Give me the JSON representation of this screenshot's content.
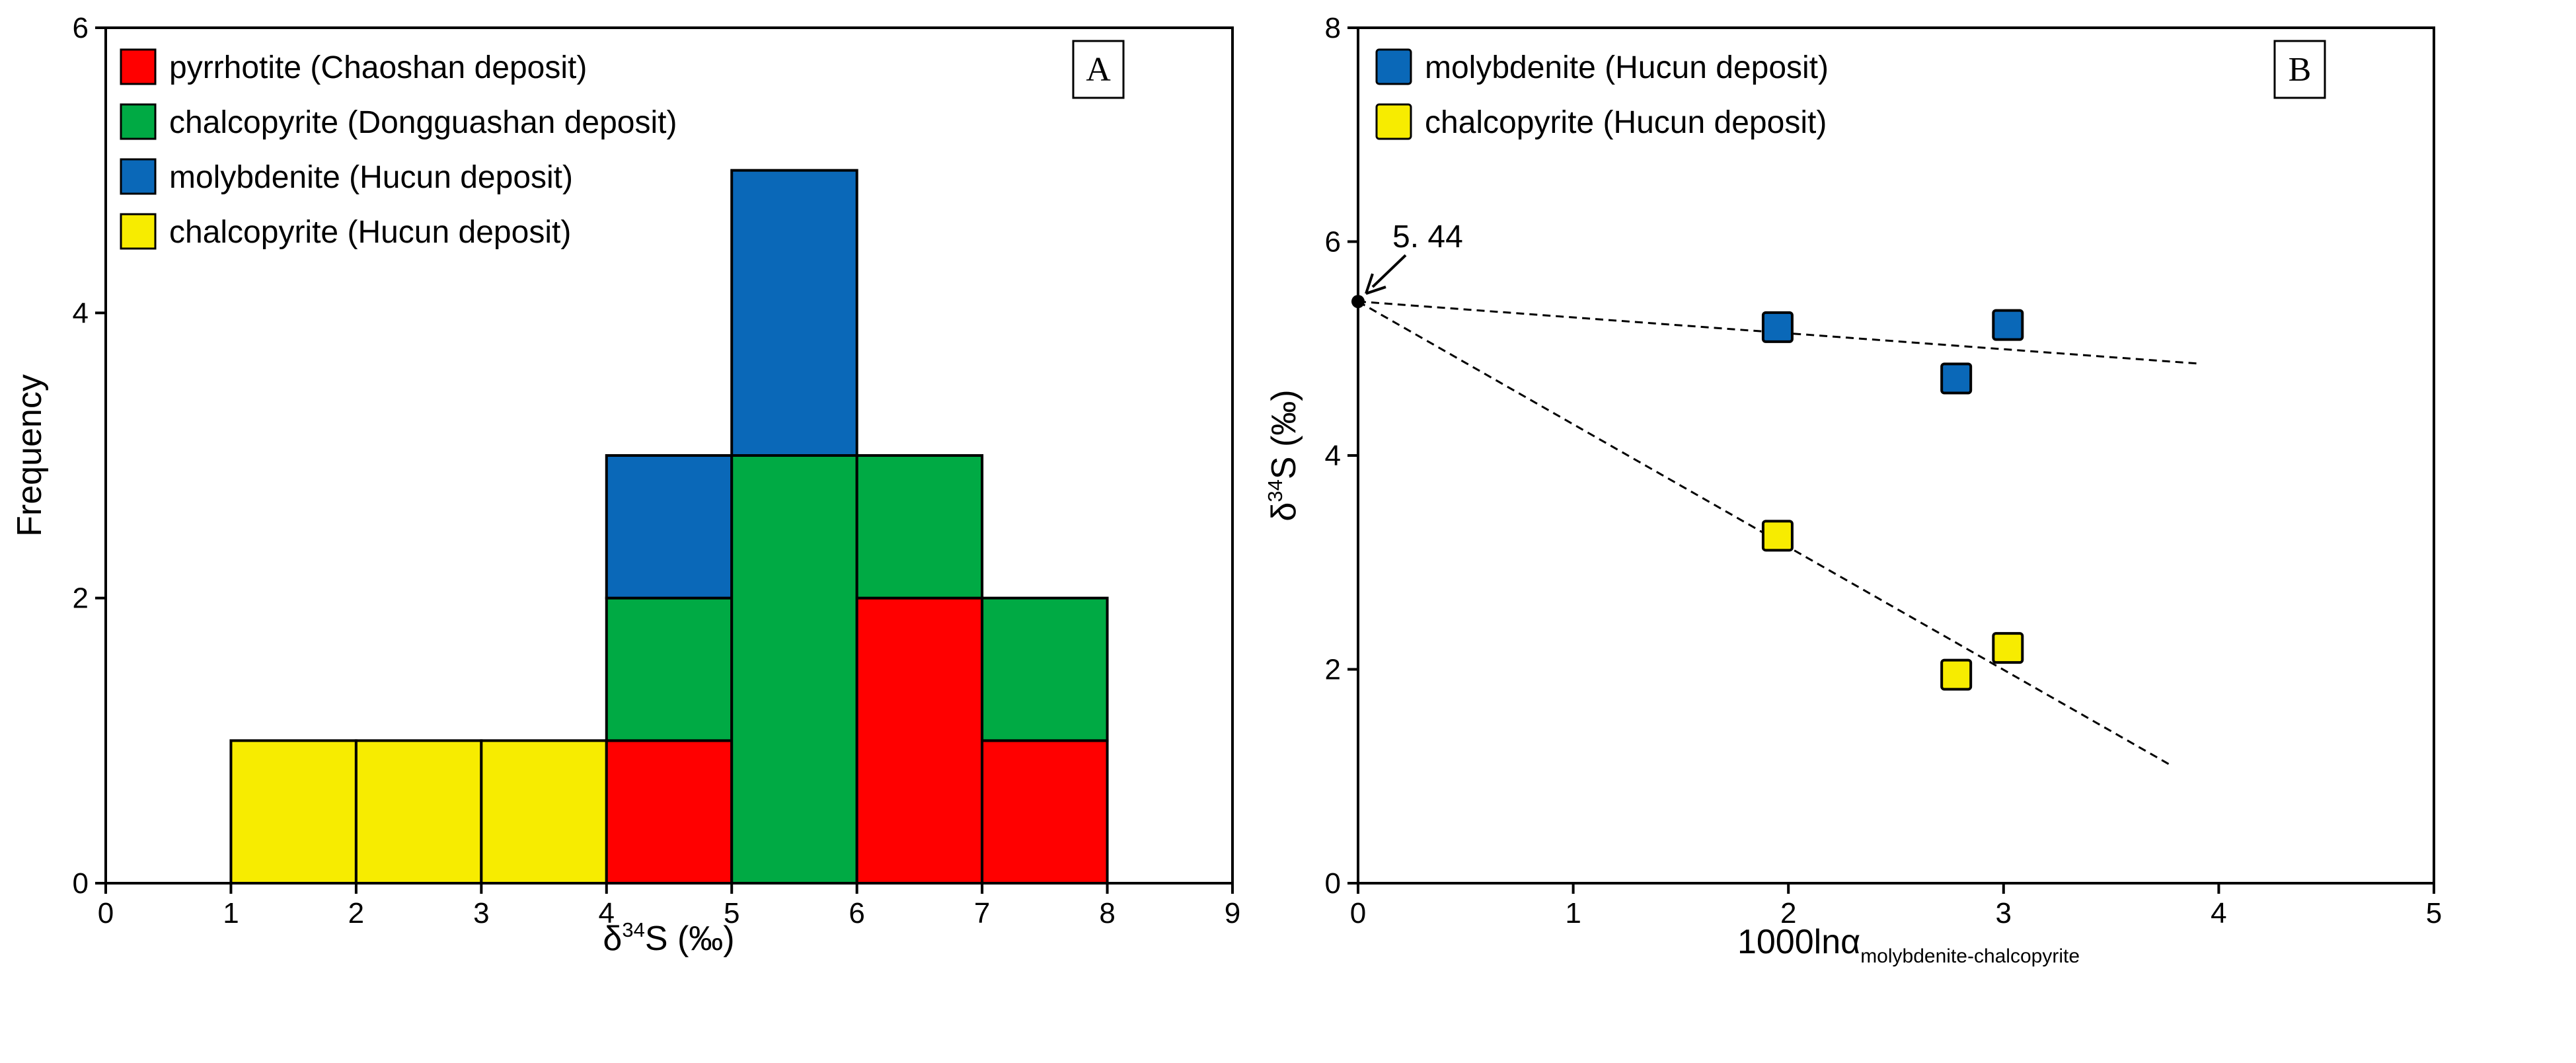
{
  "chart_data": [
    {
      "panel_label": "A",
      "type": "bar",
      "subtype": "stacked-histogram",
      "xlabel_prefix": "δ",
      "xlabel_sup": "34",
      "xlabel_suffix": "S (‰)",
      "ylabel": "Frequency",
      "xlim": [
        0,
        9
      ],
      "ylim": [
        0,
        6
      ],
      "xticks": [
        "0",
        "1",
        "2",
        "3",
        "4",
        "5",
        "6",
        "7",
        "8",
        "9"
      ],
      "yticks": [
        "0",
        "2",
        "4",
        "6"
      ],
      "grid": false,
      "legend_position": "top-left",
      "bin_edges": [
        [
          1,
          2
        ],
        [
          2,
          3
        ],
        [
          3,
          4
        ],
        [
          4,
          5
        ],
        [
          5,
          6
        ],
        [
          6,
          7
        ],
        [
          7,
          8
        ]
      ],
      "series": [
        {
          "name": "pyrrhotite (Chaoshan deposit)",
          "color": "#ff0000",
          "values": [
            0,
            0,
            0,
            1,
            0,
            2,
            1
          ]
        },
        {
          "name": "chalcopyrite (Dongguashan deposit)",
          "color": "#00aa44",
          "values": [
            0,
            0,
            0,
            1,
            3,
            1,
            1
          ]
        },
        {
          "name": "molybdenite (Hucun deposit)",
          "color": "#0a68b8",
          "values": [
            0,
            0,
            0,
            1,
            2,
            0,
            0
          ]
        },
        {
          "name": "chalcopyrite (Hucun deposit)",
          "color": "#f7ec00",
          "values": [
            1,
            1,
            1,
            0,
            0,
            0,
            0
          ]
        }
      ]
    },
    {
      "panel_label": "B",
      "type": "scatter",
      "xlabel": "1000lnα",
      "xlabel_sub": "molybdenite-chalcopyrite",
      "ylabel_prefix": "δ",
      "ylabel_sup": "34",
      "ylabel_suffix": "S (‰)",
      "xlim": [
        0,
        5
      ],
      "ylim": [
        0,
        8
      ],
      "xticks": [
        "0",
        "1",
        "2",
        "3",
        "4",
        "5"
      ],
      "yticks": [
        "0",
        "2",
        "4",
        "6",
        "8"
      ],
      "grid": false,
      "legend_position": "top-left",
      "series": [
        {
          "name": "molybdenite (Hucun deposit)",
          "color": "#0a68b8",
          "x": [
            1.95,
            2.78,
            3.02
          ],
          "y": [
            5.2,
            4.72,
            5.22
          ]
        },
        {
          "name": "chalcopyrite (Hucun deposit)",
          "color": "#f7ec00",
          "x": [
            1.95,
            2.78,
            3.02
          ],
          "y": [
            3.25,
            1.95,
            2.2
          ]
        }
      ],
      "trend_lines": [
        {
          "x": [
            0,
            3.9
          ],
          "y": [
            5.44,
            4.86
          ]
        },
        {
          "x": [
            0,
            3.78
          ],
          "y": [
            5.44,
            1.1
          ]
        }
      ],
      "intercept": {
        "x": 0,
        "y": 5.44,
        "label": "5. 44"
      }
    }
  ]
}
